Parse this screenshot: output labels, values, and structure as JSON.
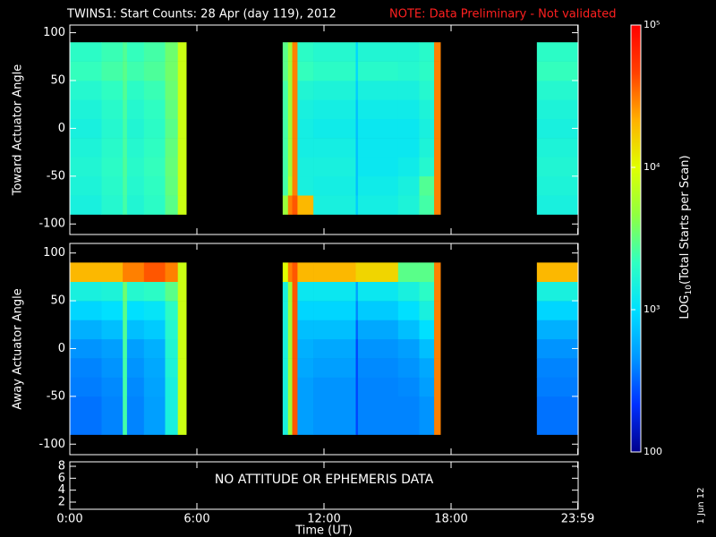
{
  "title": "TWINS1: Start Counts: 28 Apr (day 119), 2012",
  "note": "NOTE: Data Preliminary - Not validated",
  "date_stamp": "1 Jun 12",
  "colorbar": {
    "label_main": "LOG",
    "label_sub": "10",
    "label_rest": "(Total Starts per Scan)",
    "lim": [
      100,
      100000
    ],
    "log": true,
    "ticks": [
      100,
      {
        "value": 1000,
        "label": "10³"
      },
      {
        "value": 10000,
        "label": "10⁴"
      },
      {
        "value": 100000,
        "label": "10⁵"
      }
    ],
    "colormap": [
      "#00008c",
      "#0030ff",
      "#0098ff",
      "#00e0ff",
      "#30ffc0",
      "#90ff40",
      "#e0ff00",
      "#ffb000",
      "#ff4000",
      "#ff0000"
    ]
  },
  "chart_data": [
    {
      "type": "heatmap",
      "ylabel": "Toward Actuator Angle",
      "xlim": [
        0,
        24
      ],
      "ylim": [
        -111,
        108
      ],
      "yticks": [
        -100,
        -50,
        0,
        50,
        100
      ],
      "x_edges": [
        0,
        1.5,
        2.5,
        2.7,
        3.5,
        4.5,
        5.1,
        5.5,
        10.05,
        10.3,
        10.5,
        10.75,
        11.5,
        13.5,
        13.6,
        15.5,
        16.5,
        17.2,
        17.5,
        22.05,
        24
      ],
      "y_edges": [
        -90,
        -70,
        -50,
        -30,
        -10,
        10,
        30,
        50,
        70,
        90
      ],
      "values": [
        [
          1500,
          1600,
          1700,
          1600,
          1500,
          1600,
          1800,
          2200,
          2000
        ],
        [
          1800,
          1900,
          2000,
          1900,
          1800,
          1900,
          2100,
          2500,
          2300
        ],
        [
          2500,
          2600,
          2700,
          2600,
          2500,
          2600,
          2800,
          3000,
          2800
        ],
        [
          1700,
          1800,
          1900,
          1800,
          1700,
          1800,
          2000,
          2400,
          2200
        ],
        [
          2000,
          2100,
          2200,
          2100,
          2000,
          2100,
          2300,
          2700,
          2500
        ],
        [
          3000,
          3200,
          3300,
          3200,
          3000,
          3200,
          3400,
          3600,
          3500
        ],
        [
          8000,
          8000,
          8000,
          8000,
          8000,
          8000,
          8000,
          8000,
          8000
        ],
        null,
        [
          5000,
          2500,
          2500,
          2500,
          2500,
          2500,
          2500,
          3000,
          3000
        ],
        [
          30000,
          6000,
          5000,
          5000,
          5000,
          5000,
          5000,
          5000,
          5000
        ],
        [
          40000,
          30000,
          30000,
          30000,
          30000,
          30000,
          30000,
          30000,
          30000
        ],
        [
          20000,
          1500,
          1500,
          1400,
          1400,
          1500,
          1700,
          2200,
          2000
        ],
        [
          1500,
          1400,
          1500,
          1400,
          1300,
          1400,
          1600,
          2000,
          1800
        ],
        [
          800,
          700,
          700,
          700,
          700,
          700,
          800,
          900,
          900
        ],
        [
          1400,
          1300,
          1200,
          1200,
          1200,
          1300,
          1500,
          1900,
          1700
        ],
        [
          1600,
          1500,
          1300,
          1200,
          1200,
          1300,
          1500,
          1800,
          1700
        ],
        [
          2500,
          2800,
          1800,
          1600,
          1500,
          1600,
          1800,
          2000,
          1900
        ],
        [
          30000,
          30000,
          30000,
          30000,
          30000,
          30000,
          30000,
          30000,
          30000
        ],
        null,
        [
          1500,
          1600,
          1700,
          1600,
          1500,
          1600,
          1800,
          2200,
          2000
        ]
      ]
    },
    {
      "type": "heatmap",
      "ylabel": "Away Actuator Angle",
      "xlim": [
        0,
        24
      ],
      "ylim": [
        -111,
        110
      ],
      "yticks": [
        -100,
        -50,
        0,
        50,
        100
      ],
      "x_edges": [
        0,
        1.5,
        2.5,
        2.7,
        3.5,
        4.5,
        5.1,
        5.5,
        10.05,
        10.3,
        10.5,
        10.75,
        11.5,
        13.5,
        13.6,
        15.5,
        16.5,
        17.2,
        17.5,
        22.05,
        24
      ],
      "y_edges": [
        -90,
        -70,
        -50,
        -30,
        -10,
        10,
        30,
        50,
        70,
        90
      ],
      "values": [
        [
          350,
          350,
          380,
          400,
          450,
          600,
          900,
          1500,
          20000
        ],
        [
          400,
          400,
          420,
          450,
          500,
          700,
          1000,
          1600,
          20000
        ],
        [
          2500,
          2500,
          2500,
          2500,
          2600,
          2800,
          3000,
          3500,
          30000
        ],
        [
          400,
          400,
          420,
          450,
          500,
          700,
          1000,
          1800,
          30000
        ],
        [
          500,
          500,
          520,
          550,
          600,
          800,
          1100,
          2000,
          40000
        ],
        [
          1500,
          1500,
          1500,
          1600,
          1700,
          1800,
          2000,
          3000,
          30000
        ],
        [
          8000,
          8000,
          8000,
          8000,
          8000,
          8000,
          8000,
          8000,
          8000
        ],
        null,
        [
          1500,
          1500,
          1500,
          1500,
          1500,
          1500,
          1500,
          1500,
          10000
        ],
        [
          5000,
          5000,
          5000,
          5000,
          5000,
          5000,
          5000,
          5000,
          30000
        ],
        [
          40000,
          40000,
          40000,
          40000,
          40000,
          40000,
          40000,
          40000,
          40000
        ],
        [
          500,
          500,
          500,
          550,
          600,
          700,
          900,
          1200,
          20000
        ],
        [
          450,
          450,
          450,
          500,
          550,
          700,
          900,
          1200,
          20000
        ],
        [
          250,
          250,
          250,
          250,
          250,
          300,
          400,
          500,
          15000
        ],
        [
          400,
          400,
          400,
          420,
          450,
          550,
          800,
          1200,
          15000
        ],
        [
          400,
          400,
          420,
          450,
          500,
          700,
          1000,
          1500,
          3000
        ],
        [
          450,
          450,
          500,
          550,
          700,
          1000,
          1500,
          2000,
          3000
        ],
        [
          30000,
          30000,
          30000,
          30000,
          30000,
          30000,
          30000,
          30000,
          30000
        ],
        null,
        [
          350,
          350,
          380,
          400,
          450,
          600,
          900,
          1500,
          20000
        ]
      ]
    },
    {
      "type": "empty",
      "annotation": "NO ATTITUDE OR EPHEMERIS DATA",
      "xlabel": "Time (UT)",
      "xlim": [
        0,
        24
      ],
      "ylim": [
        0.8,
        8.75
      ],
      "yticks": [
        2,
        4,
        6,
        8
      ],
      "xticks": [
        {
          "value": 0,
          "label": "0:00"
        },
        {
          "value": 6,
          "label": "6:00"
        },
        {
          "value": 12,
          "label": "12:00"
        },
        {
          "value": 18,
          "label": "18:00"
        },
        {
          "value": 23.98,
          "label": "23:59"
        }
      ]
    }
  ]
}
